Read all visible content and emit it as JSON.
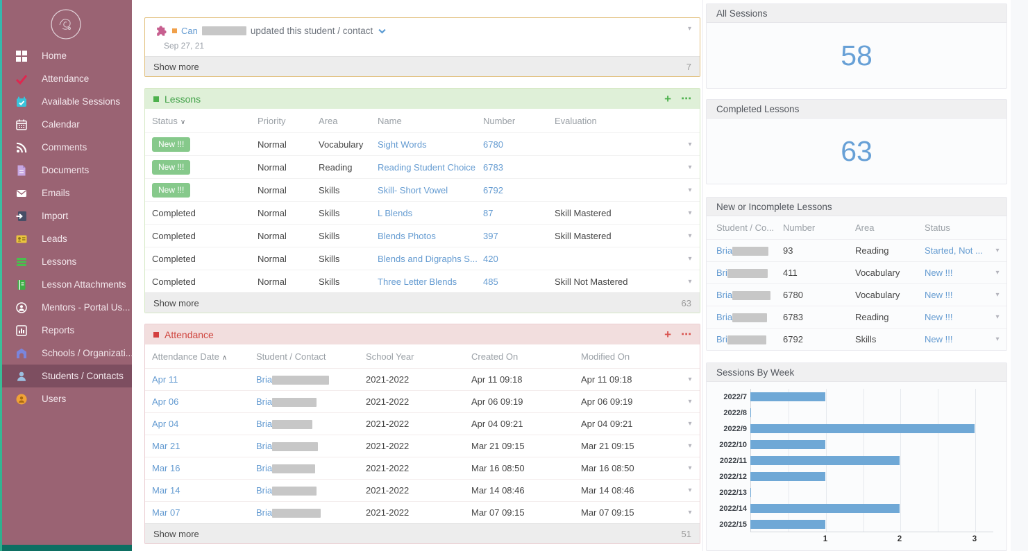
{
  "sidebar": {
    "items": [
      {
        "label": "Home",
        "icon": "home-icon"
      },
      {
        "label": "Attendance",
        "icon": "attendance-check-icon"
      },
      {
        "label": "Available Sessions",
        "icon": "available-sessions-icon"
      },
      {
        "label": "Calendar",
        "icon": "calendar-icon"
      },
      {
        "label": "Comments",
        "icon": "comments-icon"
      },
      {
        "label": "Documents",
        "icon": "documents-icon"
      },
      {
        "label": "Emails",
        "icon": "emails-icon"
      },
      {
        "label": "Import",
        "icon": "import-icon"
      },
      {
        "label": "Leads",
        "icon": "leads-icon"
      },
      {
        "label": "Lessons",
        "icon": "lessons-icon"
      },
      {
        "label": "Lesson Attachments",
        "icon": "lesson-attachments-icon"
      },
      {
        "label": "Mentors - Portal Us...",
        "icon": "mentors-icon"
      },
      {
        "label": "Reports",
        "icon": "reports-icon"
      },
      {
        "label": "Schools / Organizati...",
        "icon": "schools-icon"
      },
      {
        "label": "Students / Contacts",
        "icon": "students-icon",
        "active": true
      },
      {
        "label": "Users",
        "icon": "users-icon"
      }
    ]
  },
  "actions": {
    "add": "+",
    "menu": "⋯"
  },
  "activity": {
    "author_prefix": "Can",
    "action": "updated this student / contact",
    "date": "Sep 27, 21",
    "show_more": "Show more",
    "count": "7"
  },
  "lessons": {
    "title": "Lessons",
    "columns": [
      "Status",
      "Priority",
      "Area",
      "Name",
      "Number",
      "Evaluation"
    ],
    "rows": [
      {
        "status": "New !!!",
        "priority": "Normal",
        "area": "Vocabulary",
        "name": "Sight Words",
        "number": "6780",
        "evaluation": ""
      },
      {
        "status": "New !!!",
        "priority": "Normal",
        "area": "Reading",
        "name": "Reading Student Choice",
        "number": "6783",
        "evaluation": ""
      },
      {
        "status": "New !!!",
        "priority": "Normal",
        "area": "Skills",
        "name": "Skill- Short Vowel",
        "number": "6792",
        "evaluation": ""
      },
      {
        "status": "Completed",
        "priority": "Normal",
        "area": "Skills",
        "name": "L Blends",
        "number": "87",
        "evaluation": "Skill Mastered"
      },
      {
        "status": "Completed",
        "priority": "Normal",
        "area": "Skills",
        "name": "Blends Photos",
        "number": "397",
        "evaluation": "Skill Mastered"
      },
      {
        "status": "Completed",
        "priority": "Normal",
        "area": "Skills",
        "name": "Blends and Digraphs S...",
        "number": "420",
        "evaluation": ""
      },
      {
        "status": "Completed",
        "priority": "Normal",
        "area": "Skills",
        "name": "Three Letter Blends",
        "number": "485",
        "evaluation": "Skill Not Mastered"
      }
    ],
    "show_more": "Show more",
    "count": "63"
  },
  "attendance": {
    "title": "Attendance",
    "columns": [
      "Attendance Date",
      "Student / Contact",
      "School Year",
      "Created On",
      "Modified On"
    ],
    "rows": [
      {
        "date": "Apr 11",
        "student": "Bria",
        "year": "2021-2022",
        "created": "Apr 11 09:18",
        "modified": "Apr 11 09:18"
      },
      {
        "date": "Apr 06",
        "student": "Bria",
        "year": "2021-2022",
        "created": "Apr 06 09:19",
        "modified": "Apr 06 09:19"
      },
      {
        "date": "Apr 04",
        "student": "Bria",
        "year": "2021-2022",
        "created": "Apr 04 09:21",
        "modified": "Apr 04 09:21"
      },
      {
        "date": "Mar 21",
        "student": "Bria",
        "year": "2021-2022",
        "created": "Mar 21 09:15",
        "modified": "Mar 21 09:15"
      },
      {
        "date": "Mar 16",
        "student": "Bria",
        "year": "2021-2022",
        "created": "Mar 16 08:50",
        "modified": "Mar 16 08:50"
      },
      {
        "date": "Mar 14",
        "student": "Bria",
        "year": "2021-2022",
        "created": "Mar 14 08:46",
        "modified": "Mar 14 08:46"
      },
      {
        "date": "Mar 07",
        "student": "Bria",
        "year": "2021-2022",
        "created": "Mar 07 09:15",
        "modified": "Mar 07 09:15"
      }
    ],
    "show_more": "Show more",
    "count": "51"
  },
  "stats": {
    "all_sessions": {
      "title": "All Sessions",
      "value": "58"
    },
    "completed_lessons": {
      "title": "Completed Lessons",
      "value": "63"
    }
  },
  "new_incomplete": {
    "title": "New or Incomplete Lessons",
    "columns": [
      "Student / Co...",
      "Number",
      "Area",
      "Status"
    ],
    "rows": [
      {
        "student": "Bria",
        "number": "93",
        "area": "Reading",
        "status": "Started, Not ..."
      },
      {
        "student": "Bri",
        "number": "411",
        "area": "Vocabulary",
        "status": "New !!!"
      },
      {
        "student": "Bria",
        "number": "6780",
        "area": "Vocabulary",
        "status": "New !!!"
      },
      {
        "student": "Bria",
        "number": "6783",
        "area": "Reading",
        "status": "New !!!"
      },
      {
        "student": "Bri",
        "number": "6792",
        "area": "Skills",
        "status": "New !!!"
      }
    ]
  },
  "chart_data": {
    "type": "bar",
    "orientation": "horizontal",
    "title": "Sessions By Week",
    "categories": [
      "2022/7",
      "2022/8",
      "2022/9",
      "2022/10",
      "2022/11",
      "2022/12",
      "2022/13",
      "2022/14",
      "2022/15"
    ],
    "values": [
      1,
      0,
      3,
      1,
      2,
      1,
      0,
      2,
      1
    ],
    "xticks": [
      1,
      2,
      3
    ],
    "xlim": [
      0,
      3.25
    ],
    "grid": true,
    "bar_color": "#6fa8d6"
  },
  "colors": {
    "sidebar_bg": "#9a6373",
    "sidebar_active_bg": "#7d4e60",
    "accent_green": "#4db14d",
    "accent_red": "#d9534f",
    "link_blue": "#649bd1",
    "stat_blue": "#67a0d6",
    "warning_border": "#e2bf7c"
  }
}
